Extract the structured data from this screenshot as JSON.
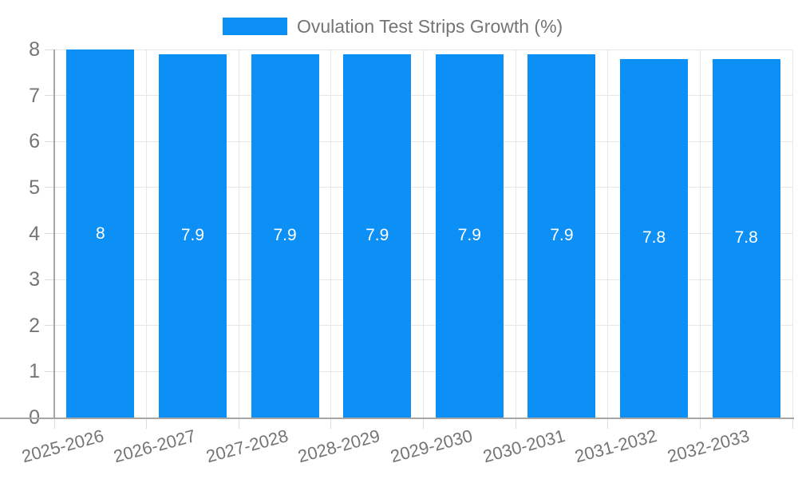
{
  "chart_data": {
    "type": "bar",
    "title": "Ovulation Test Strips Growth (%)",
    "categories": [
      "2025-2026",
      "2026-2027",
      "2027-2028",
      "2028-2029",
      "2029-2030",
      "2030-2031",
      "2031-2032",
      "2032-2033"
    ],
    "values": [
      8,
      7.9,
      7.9,
      7.9,
      7.9,
      7.9,
      7.8,
      7.8
    ],
    "bar_labels": [
      "8",
      "7.9",
      "7.9",
      "7.9",
      "7.9",
      "7.9",
      "7.8",
      "7.8"
    ],
    "xlabel": "",
    "ylabel": "",
    "ylim": [
      0,
      8
    ],
    "yticks": [
      0,
      1,
      2,
      3,
      4,
      5,
      6,
      7,
      8
    ],
    "grid": true,
    "legend_position": "top",
    "colors": {
      "bar": "#0d90f5",
      "bar_label": "#ffffff",
      "axis_text": "#757575",
      "gridline": "#e6e6e6",
      "tick": "#dcdcdc",
      "axis_line": "#a6a6a6"
    }
  }
}
